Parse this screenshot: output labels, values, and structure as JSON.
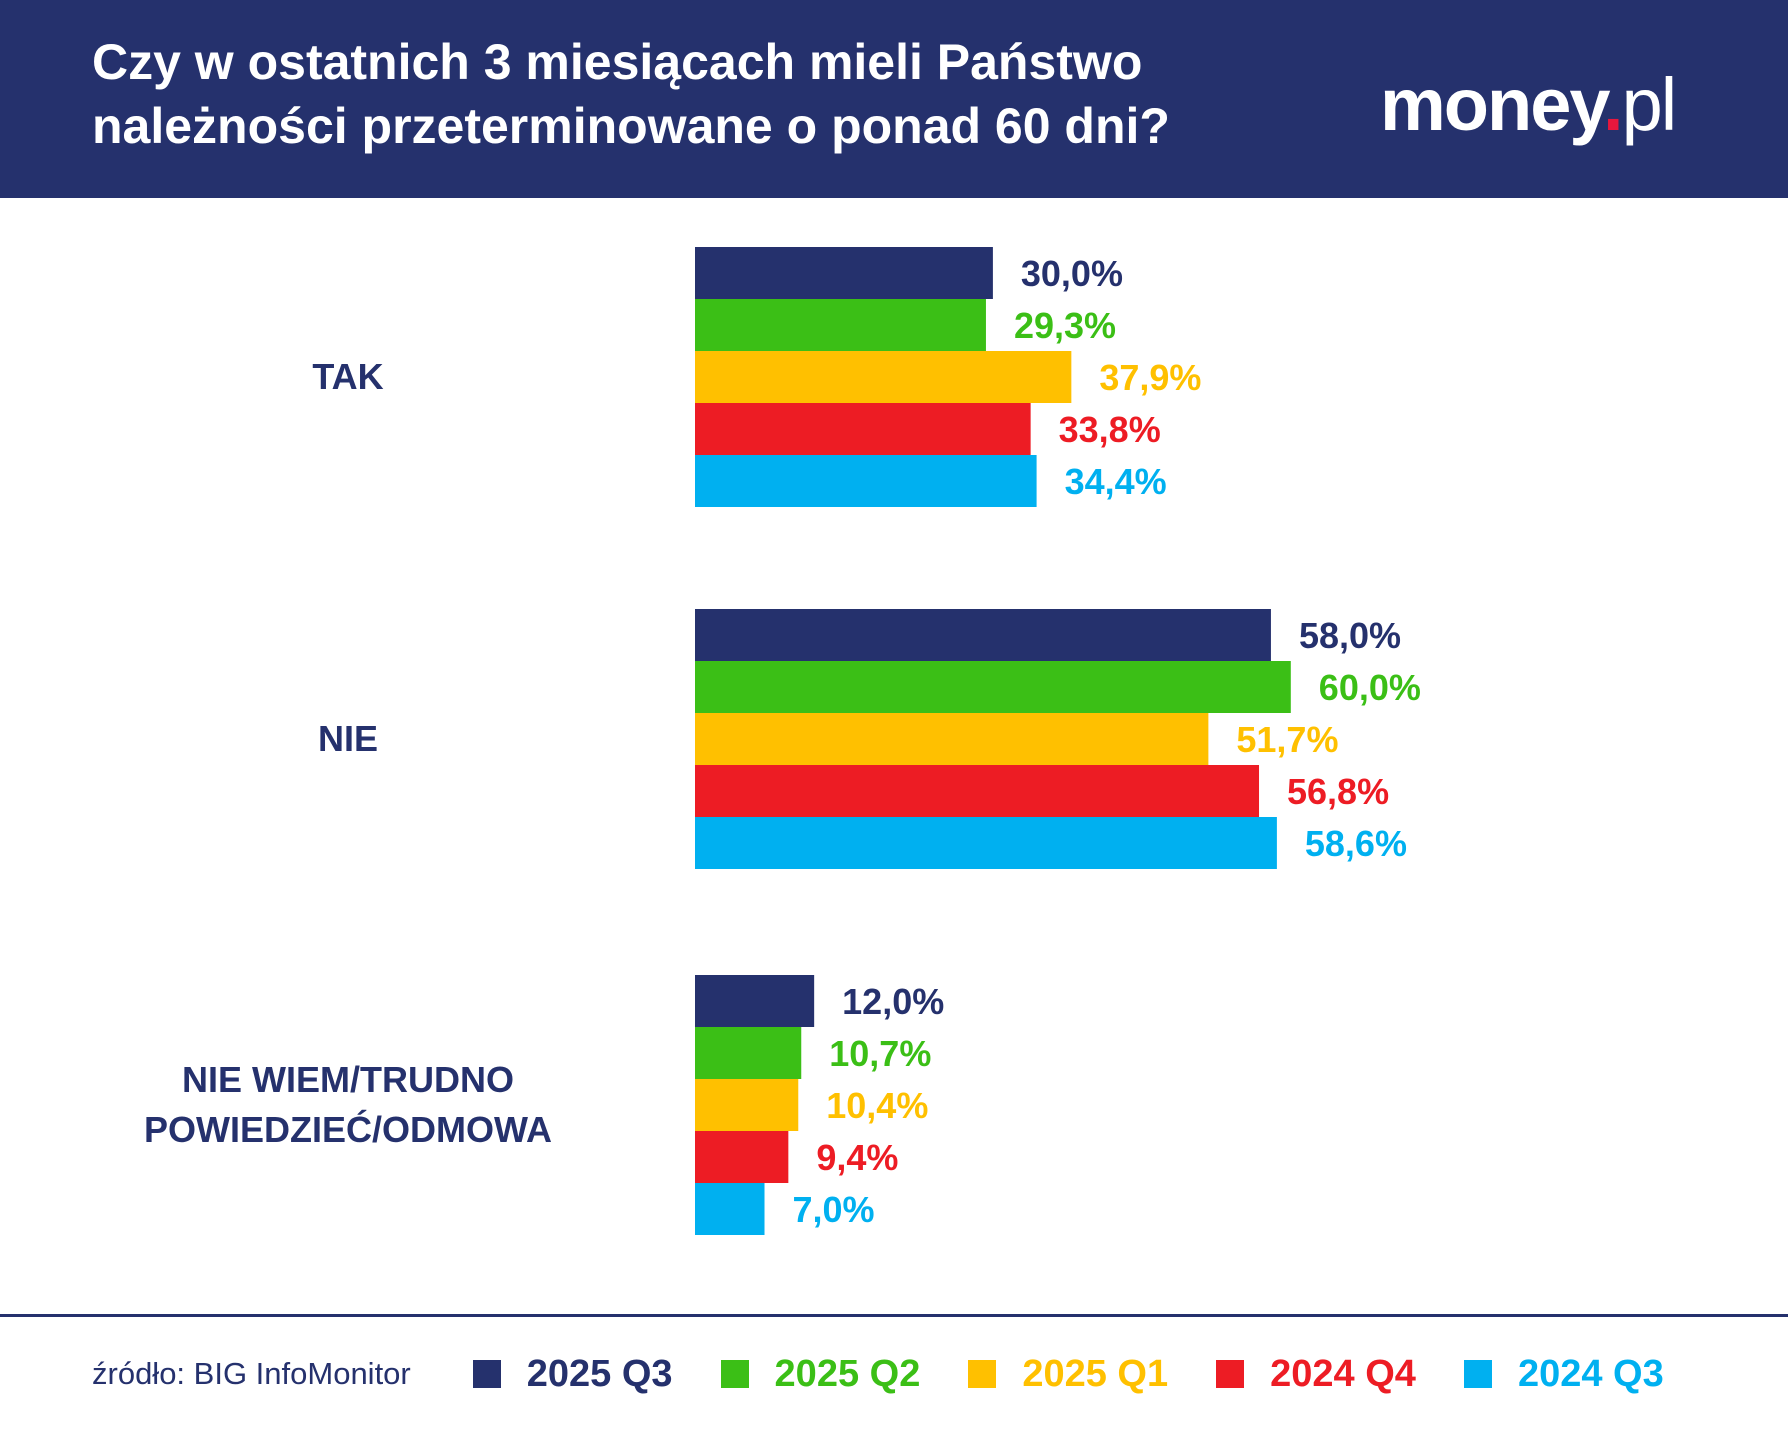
{
  "title": "Czy w ostatnich 3 miesiącach mieli Państwo należności przeterminowane o ponad 60 dni?",
  "logo": {
    "main": "money",
    "dot": ".",
    "suffix": "pl"
  },
  "source": "źródło: BIG InfoMonitor",
  "chart_data": {
    "type": "bar",
    "orientation": "horizontal",
    "title": "Czy w ostatnich 3 miesiącach mieli Państwo należności przeterminowane o ponad 60 dni?",
    "categories": [
      "TAK",
      "NIE",
      "NIE WIEM/TRUDNO POWIEDZIEĆ/ODMOWA"
    ],
    "series": [
      {
        "name": "2025 Q3",
        "color": "#25316d",
        "values": [
          30.0,
          58.0,
          12.0
        ],
        "labels": [
          "30,0%",
          "58,0%",
          "12,0%"
        ]
      },
      {
        "name": "2025 Q2",
        "color": "#3bbf16",
        "values": [
          29.3,
          60.0,
          10.7
        ],
        "labels": [
          "29,3%",
          "60,0%",
          "10,7%"
        ]
      },
      {
        "name": "2025 Q1",
        "color": "#ffc000",
        "values": [
          37.9,
          51.7,
          10.4
        ],
        "labels": [
          "37,9%",
          "51,7%",
          "10,4%"
        ]
      },
      {
        "name": "2024 Q4",
        "color": "#ed1c24",
        "values": [
          33.8,
          56.8,
          9.4
        ],
        "labels": [
          "33,8%",
          "56,8%",
          "9,4%"
        ]
      },
      {
        "name": "2024 Q3",
        "color": "#00b0f0",
        "values": [
          34.4,
          58.6,
          7.0
        ],
        "labels": [
          "34,4%",
          "58,6%",
          "7,0%"
        ]
      }
    ],
    "unit": "%",
    "grid": false,
    "legend_position": "bottom"
  }
}
